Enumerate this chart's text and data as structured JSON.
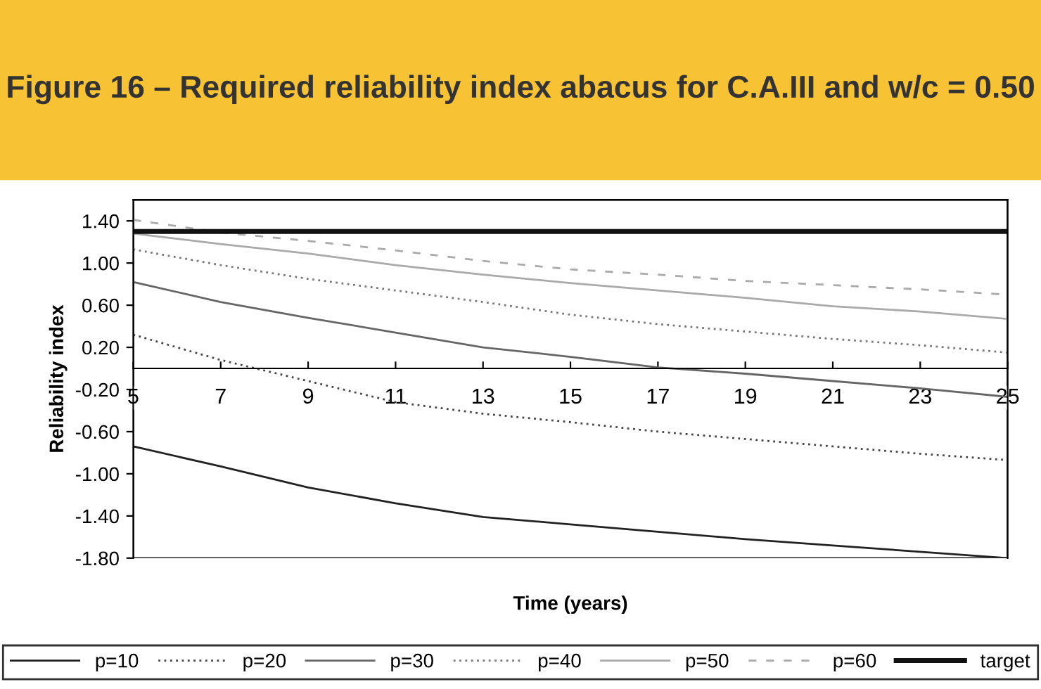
{
  "chart_data": {
    "type": "line",
    "title": "Figure 16 – Required reliability index abacus for C.A.III and w/c = 0.50",
    "xlabel": "Time (years)",
    "ylabel": "Reliability index",
    "x": [
      5,
      7,
      9,
      11,
      13,
      15,
      17,
      19,
      21,
      23,
      25
    ],
    "xlim": [
      5,
      25
    ],
    "xticks": [
      5,
      7,
      9,
      11,
      13,
      15,
      17,
      19,
      21,
      23,
      25
    ],
    "ylim": [
      -1.8,
      1.6
    ],
    "yticks": [
      {
        "value": -1.8,
        "label": "-1.80"
      },
      {
        "value": -1.4,
        "label": "-1.40"
      },
      {
        "value": -1.0,
        "label": "-1.00"
      },
      {
        "value": -0.6,
        "label": "-0.60"
      },
      {
        "value": -0.2,
        "label": "-0.20"
      },
      {
        "value": 0.2,
        "label": "0.20"
      },
      {
        "value": 0.6,
        "label": "0.60"
      },
      {
        "value": 1.0,
        "label": "1.00"
      },
      {
        "value": 1.4,
        "label": "1.40"
      }
    ],
    "grid": false,
    "legend": "bottom",
    "marker": "none",
    "series": [
      {
        "name": "p=10",
        "color": "#222222",
        "line_style": "solid",
        "values": [
          -0.74,
          -0.93,
          -1.13,
          -1.28,
          -1.41,
          -1.48,
          -1.55,
          -1.62,
          -1.68,
          -1.74,
          -1.8
        ]
      },
      {
        "name": "p=20",
        "color": "#444444",
        "line_style": "dotted",
        "values": [
          0.32,
          0.08,
          -0.12,
          -0.32,
          -0.43,
          -0.51,
          -0.6,
          -0.67,
          -0.74,
          -0.81,
          -0.87
        ]
      },
      {
        "name": "p=30",
        "color": "#666666",
        "line_style": "solid",
        "values": [
          0.82,
          0.63,
          0.48,
          0.34,
          0.2,
          0.11,
          0.01,
          -0.05,
          -0.12,
          -0.19,
          -0.27
        ]
      },
      {
        "name": "p=40",
        "color": "#777777",
        "line_style": "dotted",
        "values": [
          1.13,
          0.98,
          0.85,
          0.74,
          0.63,
          0.51,
          0.42,
          0.35,
          0.28,
          0.22,
          0.15
        ]
      },
      {
        "name": "p=50",
        "color": "#aaaaaa",
        "line_style": "solid",
        "values": [
          1.28,
          1.18,
          1.09,
          0.98,
          0.89,
          0.81,
          0.74,
          0.67,
          0.59,
          0.54,
          0.47
        ]
      },
      {
        "name": "p=60",
        "color": "#aaaaaa",
        "line_style": "dashed",
        "values": [
          1.41,
          1.29,
          1.21,
          1.12,
          1.02,
          0.94,
          0.89,
          0.83,
          0.79,
          0.75,
          0.7
        ]
      }
    ],
    "ref_lines": [
      {
        "axis": "y",
        "value": 1.3,
        "label": "target",
        "color": "#111111",
        "line_style": "solid"
      }
    ]
  }
}
